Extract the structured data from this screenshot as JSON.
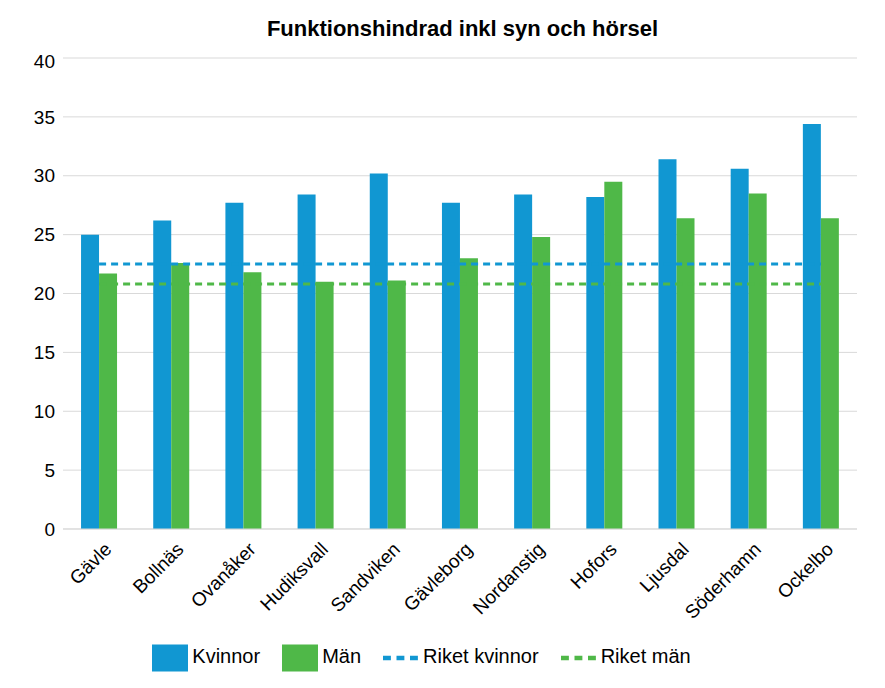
{
  "chart_data": {
    "type": "bar",
    "title": "Funktionshindrad inkl syn och hörsel",
    "categories": [
      "Gävle",
      "Bollnäs",
      "Ovanåker",
      "Hudiksvall",
      "Sandviken",
      "Gävleborg",
      "Nordanstig",
      "Hofors",
      "Ljusdal",
      "Söderhamn",
      "Ockelbo"
    ],
    "series": [
      {
        "name": "Kvinnor",
        "type": "bar",
        "color": "#1197d2",
        "values": [
          25.0,
          26.2,
          27.7,
          28.4,
          30.2,
          27.7,
          28.4,
          28.2,
          31.4,
          30.6,
          34.4
        ]
      },
      {
        "name": "Män",
        "type": "bar",
        "color": "#4fb848",
        "values": [
          21.7,
          22.6,
          21.8,
          21.0,
          21.1,
          23.0,
          24.8,
          29.5,
          26.4,
          28.5,
          26.4
        ]
      },
      {
        "name": "Riket kvinnor",
        "type": "line",
        "line_style": "dashed",
        "color": "#1197d2",
        "values": [
          22.5,
          22.5,
          22.5,
          22.5,
          22.5,
          22.5,
          22.5,
          22.5,
          22.5,
          22.5,
          22.5
        ]
      },
      {
        "name": "Riket män",
        "type": "line",
        "line_style": "dashed",
        "color": "#4fb848",
        "values": [
          20.8,
          20.8,
          20.8,
          20.8,
          20.8,
          20.8,
          20.8,
          20.8,
          20.8,
          20.8,
          20.8
        ]
      }
    ],
    "ylim": [
      0,
      40
    ],
    "yticks": [
      0,
      5,
      10,
      15,
      20,
      25,
      30,
      35,
      40
    ],
    "grid": true,
    "legend": "bottom"
  }
}
